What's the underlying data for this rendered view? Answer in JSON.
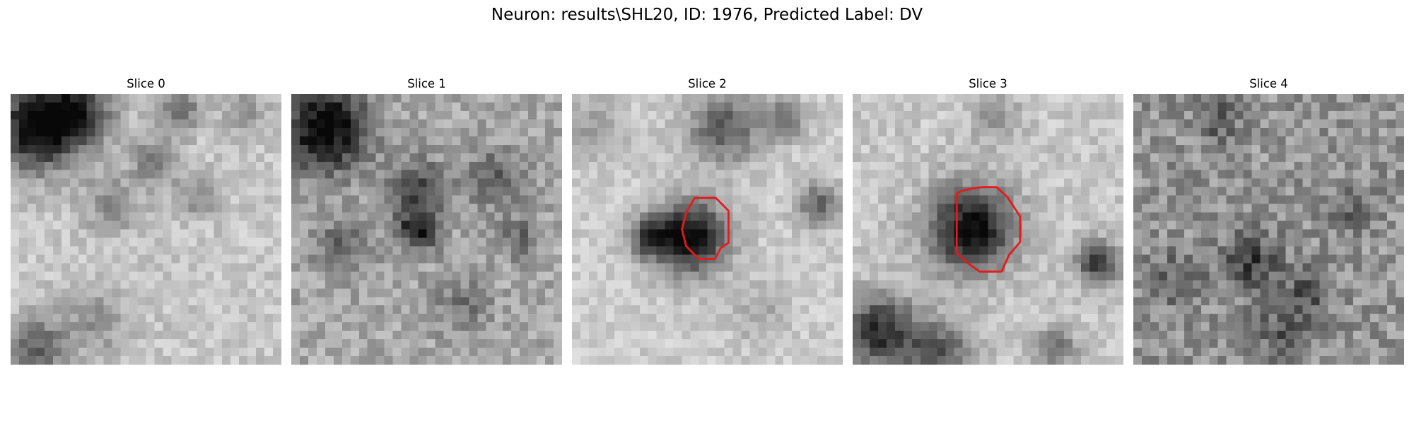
{
  "figure": {
    "title": "Neuron: results\\SHL20, ID: 1976, Predicted Label: DV",
    "contour_color": "#e41a1c",
    "panels": [
      {
        "title": "Slice 0",
        "has_contour": false,
        "image_description": "grayscale EM slice, dark region top-left"
      },
      {
        "title": "Slice 1",
        "has_contour": false,
        "image_description": "grayscale EM slice, dark blob center"
      },
      {
        "title": "Slice 2",
        "has_contour": true,
        "image_description": "grayscale EM slice with red outlined nucleus"
      },
      {
        "title": "Slice 3",
        "has_contour": true,
        "image_description": "grayscale EM slice with larger red outlined nucleus"
      },
      {
        "title": "Slice 4",
        "has_contour": false,
        "image_description": "noisy grayscale EM slice"
      }
    ]
  }
}
